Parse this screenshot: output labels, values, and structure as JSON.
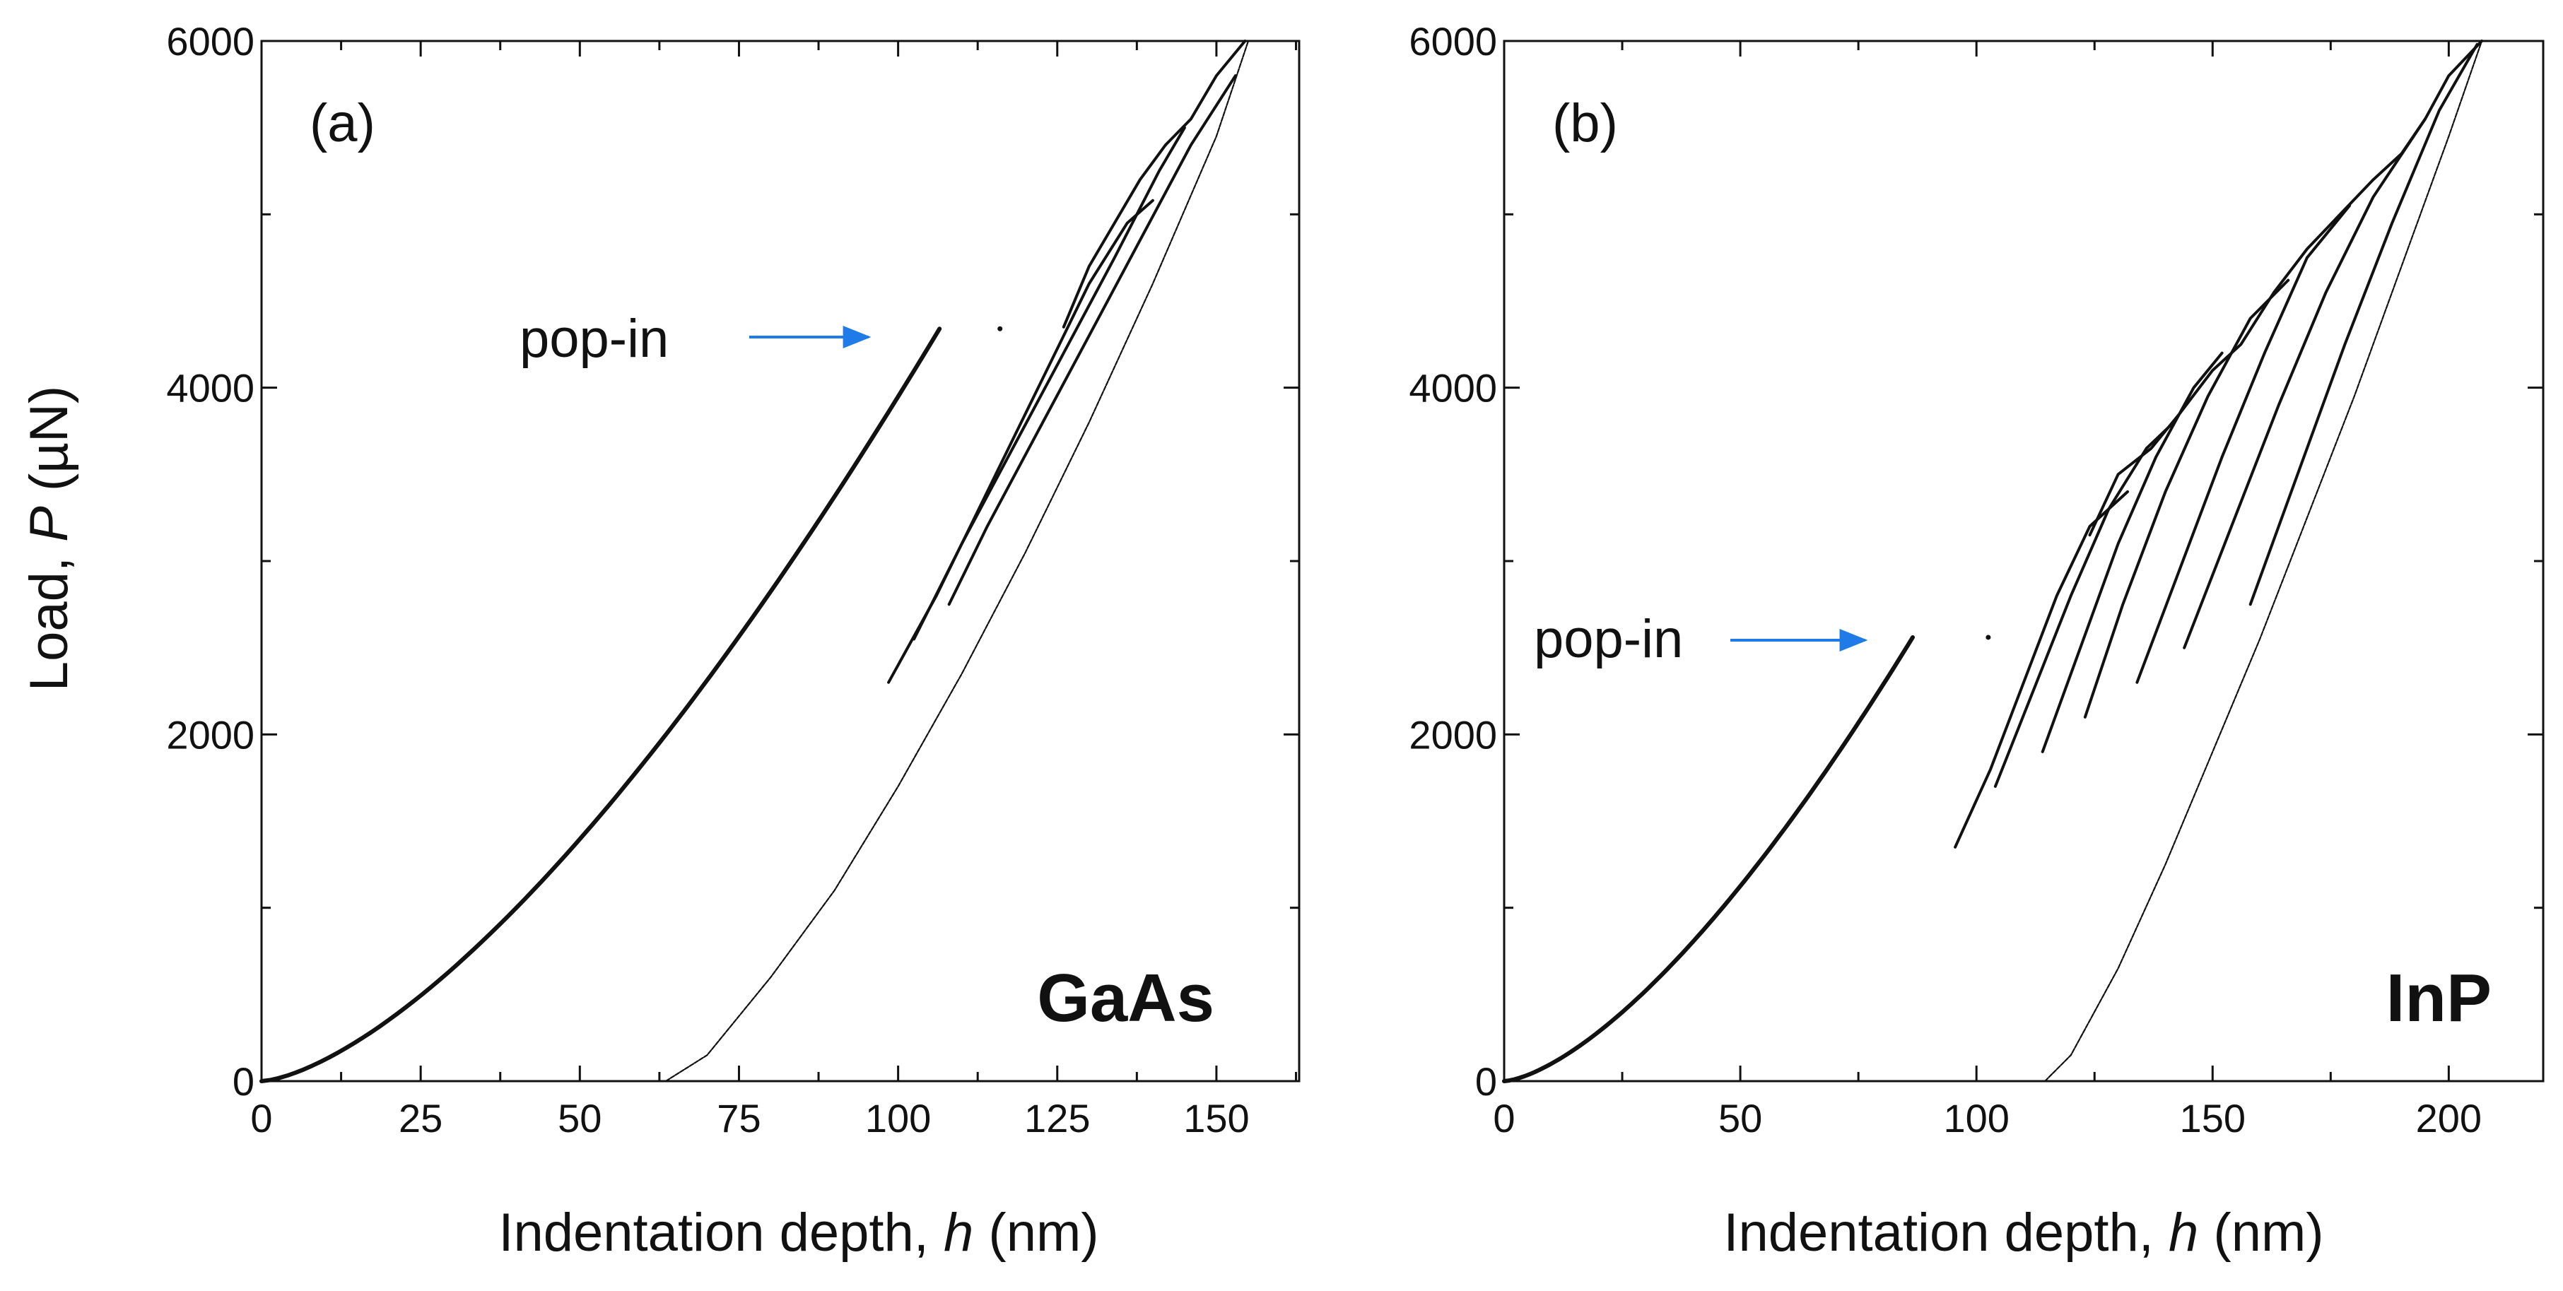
{
  "figure": {
    "ylabel_prefix": "Load, ",
    "ylabel_var": "P",
    "ylabel_unit": " (µN)",
    "xlabel_prefix": "Indentation depth, ",
    "xlabel_var": "h",
    "xlabel_unit": " (nm)"
  },
  "chart_data": [
    {
      "type": "line",
      "panel": "(a)",
      "material": "GaAs",
      "annotation": "pop-in",
      "annotation_target": {
        "x": 98,
        "y": 4300
      },
      "xlim": [
        0,
        163
      ],
      "ylim": [
        0,
        6000
      ],
      "xticks": [
        0,
        25,
        50,
        75,
        100,
        125,
        150
      ],
      "xticks_minor_step": 12.5,
      "yticks": [
        0,
        2000,
        4000,
        6000
      ],
      "yticks_minor_step": 1000,
      "series": [
        {
          "name": "loading before pop-in",
          "style": "thick",
          "power": 1.5,
          "x": [
            0,
            106.5
          ],
          "y": [
            0,
            4340
          ]
        },
        {
          "name": "pop-in point",
          "style": "dot",
          "x": [
            116
          ],
          "y": [
            4340
          ]
        },
        {
          "name": "reload 1",
          "style": "medium",
          "x": [
            98.5,
            106,
            112,
            118,
            124,
            130,
            136,
            140
          ],
          "y": [
            2300,
            2800,
            3250,
            3700,
            4150,
            4600,
            4950,
            5080
          ]
        },
        {
          "name": "reload 2",
          "style": "medium",
          "x": [
            102.5,
            110,
            118,
            126,
            134,
            141,
            145
          ],
          "y": [
            2550,
            3100,
            3650,
            4200,
            4750,
            5250,
            5500
          ]
        },
        {
          "name": "reload 3",
          "style": "medium",
          "x": [
            108,
            114,
            122,
            130,
            138,
            146,
            153
          ],
          "y": [
            2750,
            3200,
            3750,
            4300,
            4850,
            5400,
            5800
          ]
        },
        {
          "name": "envelope",
          "style": "medium",
          "x": [
            126,
            130,
            134,
            138,
            142,
            146,
            150,
            154.5
          ],
          "y": [
            4350,
            4700,
            4950,
            5200,
            5400,
            5550,
            5800,
            6000
          ]
        },
        {
          "name": "final unloading",
          "style": "thin",
          "x": [
            63.5,
            70,
            80,
            90,
            100,
            110,
            120,
            130,
            140,
            150,
            155
          ],
          "y": [
            0,
            150,
            600,
            1100,
            1700,
            2350,
            3050,
            3800,
            4600,
            5450,
            6000
          ]
        }
      ]
    },
    {
      "type": "line",
      "panel": "(b)",
      "material": "InP",
      "annotation": "pop-in",
      "annotation_target": {
        "x": 80,
        "y": 2540
      },
      "xlim": [
        0,
        220
      ],
      "ylim": [
        0,
        6000
      ],
      "xticks": [
        0,
        50,
        100,
        150,
        200
      ],
      "xticks_minor_step": 25,
      "yticks": [
        0,
        2000,
        4000,
        6000
      ],
      "yticks_minor_step": 1000,
      "series": [
        {
          "name": "loading before pop-in",
          "style": "thick",
          "power": 1.5,
          "x": [
            0,
            86.5
          ],
          "y": [
            0,
            2560
          ]
        },
        {
          "name": "pop-in point",
          "style": "dot",
          "x": [
            102.5
          ],
          "y": [
            2560
          ]
        },
        {
          "name": "reload 1",
          "style": "medium",
          "x": [
            95.5,
            103,
            110,
            117,
            124,
            132
          ],
          "y": [
            1350,
            1800,
            2300,
            2800,
            3200,
            3400
          ]
        },
        {
          "name": "reload 2",
          "style": "medium",
          "x": [
            104,
            112,
            120,
            128,
            136,
            141
          ],
          "y": [
            1700,
            2250,
            2800,
            3300,
            3650,
            3780
          ]
        },
        {
          "name": "reload 3",
          "style": "medium",
          "x": [
            114,
            122,
            130,
            138,
            146,
            152
          ],
          "y": [
            1900,
            2500,
            3100,
            3600,
            4000,
            4200
          ]
        },
        {
          "name": "reload 4",
          "style": "medium",
          "x": [
            123,
            131,
            140,
            149,
            158,
            166
          ],
          "y": [
            2100,
            2750,
            3400,
            3950,
            4400,
            4620
          ]
        },
        {
          "name": "reload 5",
          "style": "medium",
          "x": [
            134,
            143,
            152,
            161,
            170,
            179
          ],
          "y": [
            2300,
            2950,
            3600,
            4200,
            4750,
            5050
          ]
        },
        {
          "name": "reload 6",
          "style": "medium",
          "x": [
            144,
            154,
            164,
            174,
            184,
            195
          ],
          "y": [
            2500,
            3200,
            3900,
            4550,
            5100,
            5550
          ]
        },
        {
          "name": "reload 7",
          "style": "medium",
          "x": [
            158,
            168,
            178,
            188,
            198,
            206
          ],
          "y": [
            2750,
            3500,
            4250,
            4950,
            5600,
            5980
          ]
        },
        {
          "name": "envelope",
          "style": "medium",
          "x": [
            124,
            130,
            137,
            143,
            150,
            156,
            163,
            170,
            177,
            184,
            190,
            195,
            200,
            207
          ],
          "y": [
            3150,
            3500,
            3650,
            3850,
            4100,
            4250,
            4550,
            4800,
            5000,
            5200,
            5350,
            5550,
            5800,
            6000
          ]
        },
        {
          "name": "final unloading",
          "style": "thin",
          "x": [
            114.5,
            120,
            130,
            140,
            150,
            160,
            170,
            180,
            190,
            200,
            207
          ],
          "y": [
            0,
            150,
            650,
            1250,
            1900,
            2550,
            3250,
            3950,
            4700,
            5450,
            6000
          ]
        }
      ]
    }
  ],
  "colors": {
    "line": "#111111",
    "arrow": "#1f7be8",
    "background": "#ffffff"
  }
}
